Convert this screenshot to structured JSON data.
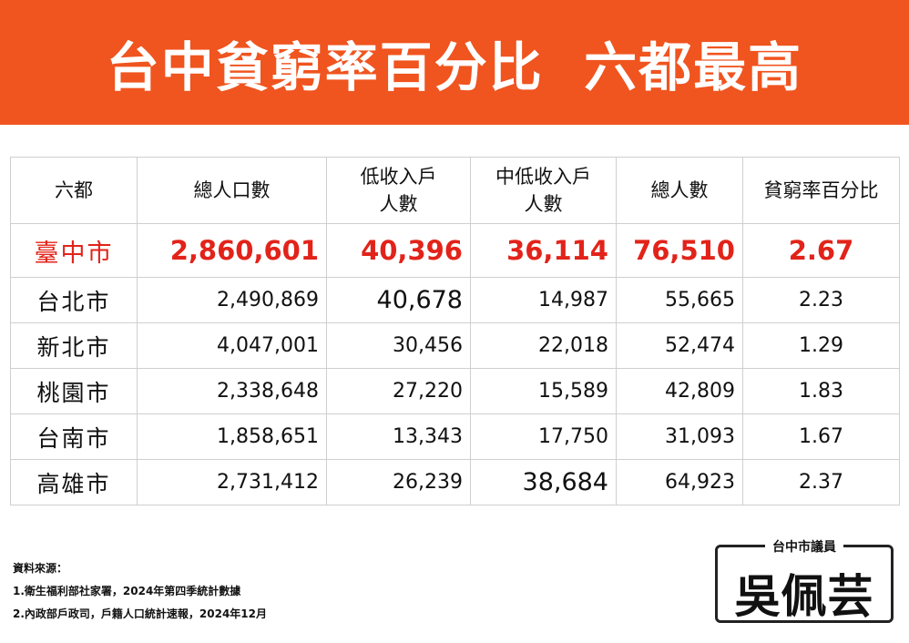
{
  "title": "台中貧窮率百分比  六都最高",
  "table": {
    "headers": [
      "六都",
      "總人口數",
      "低收入戶\n人數",
      "中低收入戶\n人數",
      "總人數",
      "貧窮率百分比"
    ],
    "rows": [
      {
        "city": "臺中市",
        "population": "2,860,601",
        "low_income": "40,396",
        "mid_low_income": "36,114",
        "total": "76,510",
        "rate": "2.67"
      },
      {
        "city": "台北市",
        "population": "2,490,869",
        "low_income": "40,678",
        "mid_low_income": "14,987",
        "total": "55,665",
        "rate": "2.23"
      },
      {
        "city": "新北市",
        "population": "4,047,001",
        "low_income": "30,456",
        "mid_low_income": "22,018",
        "total": "52,474",
        "rate": "1.29"
      },
      {
        "city": "桃園市",
        "population": "2,338,648",
        "low_income": "27,220",
        "mid_low_income": "15,589",
        "total": "42,809",
        "rate": "1.83"
      },
      {
        "city": "台南市",
        "population": "1,858,651",
        "low_income": "13,343",
        "mid_low_income": "17,750",
        "total": "31,093",
        "rate": "1.67"
      },
      {
        "city": "高雄市",
        "population": "2,731,412",
        "low_income": "26,239",
        "mid_low_income": "38,684",
        "total": "64,923",
        "rate": "2.37"
      }
    ]
  },
  "source": {
    "label": "資料來源：",
    "items": [
      "1.衛生福利部社家署，2024年第四季統計數據",
      "2.內政部戶政司，戶籍人口統計速報，2024年12月"
    ]
  },
  "badge": {
    "title": "台中市議員",
    "name": "吳佩芸"
  },
  "colors": {
    "banner": "#f0541f",
    "highlight": "#e2231a"
  }
}
